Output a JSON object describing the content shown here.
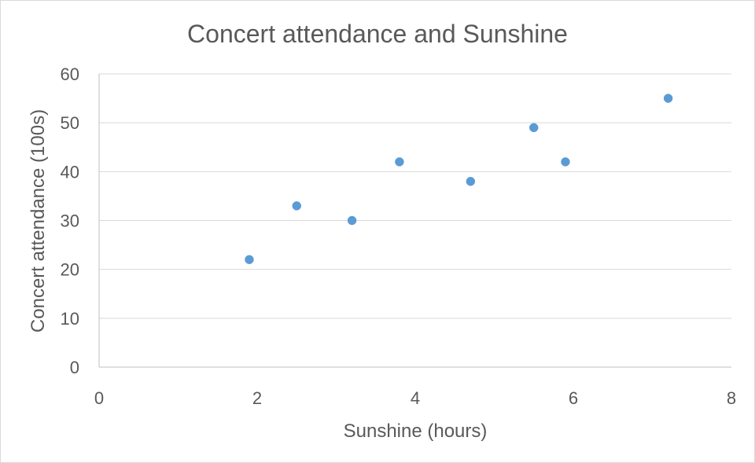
{
  "chart_data": {
    "type": "scatter",
    "title": "Concert attendance and Sunshine",
    "xlabel": "Sunshine (hours)",
    "ylabel": "Concert attendance (100s)",
    "xlim": [
      0,
      8
    ],
    "ylim": [
      0,
      60
    ],
    "x_ticks": [
      "0",
      "2",
      "4",
      "6",
      "8"
    ],
    "y_ticks": [
      "0",
      "10",
      "20",
      "30",
      "40",
      "50",
      "60"
    ],
    "grid": {
      "horizontal": true,
      "vertical": false
    },
    "legend": "none",
    "series": [
      {
        "color": "#5b9bd5",
        "points": [
          {
            "x": 1.9,
            "y": 22
          },
          {
            "x": 2.5,
            "y": 33
          },
          {
            "x": 3.2,
            "y": 30
          },
          {
            "x": 3.8,
            "y": 42
          },
          {
            "x": 4.7,
            "y": 38
          },
          {
            "x": 5.5,
            "y": 49
          },
          {
            "x": 5.9,
            "y": 42
          },
          {
            "x": 7.2,
            "y": 55
          }
        ]
      }
    ]
  }
}
